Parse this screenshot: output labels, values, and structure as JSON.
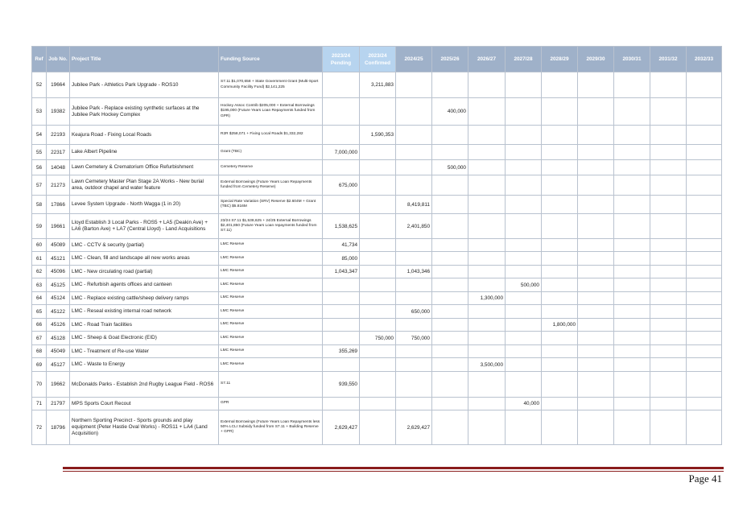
{
  "table": {
    "headers": {
      "ref": "Ref",
      "job_no": "Job No.",
      "project_title": "Project Title",
      "funding_source": "Funding Source",
      "years": [
        "2023/24 Pending",
        "2023/24 Confirmed",
        "2024/25",
        "2025/26",
        "2026/27",
        "2027/28",
        "2028/29",
        "2029/30",
        "2030/31",
        "2031/32",
        "2032/33"
      ]
    },
    "rows": [
      {
        "ref": "52",
        "job": "19664",
        "title": "Jubilee Park - Athletics Park Upgrade - ROS10",
        "funding": "S7.11 $1,070,658 + State Government Grant (Multi-Sport Community Facility Fund) $2,141,225",
        "values": [
          "",
          "3,211,883",
          "",
          "",
          "",
          "",
          "",
          "",
          "",
          "",
          ""
        ]
      },
      {
        "ref": "53",
        "job": "19382",
        "title": "Jubilee Park - Replace existing synthetic surfaces at the Jubilee Park Hockey Complex",
        "funding": "Hockey Assoc Contrib $205,000 + External Borrowings $195,000 (Future Years Loan Repayments funded from GPR)",
        "values": [
          "",
          "",
          "",
          "400,000",
          "",
          "",
          "",
          "",
          "",
          "",
          ""
        ]
      },
      {
        "ref": "54",
        "job": "22193",
        "title": "Keajura Road - Fixing Local Roads",
        "funding": "R2R $258,071 + Fixing Local Roads $1,332,282",
        "values": [
          "",
          "1,590,353",
          "",
          "",
          "",
          "",
          "",
          "",
          "",
          "",
          ""
        ]
      },
      {
        "ref": "55",
        "job": "22317",
        "title": "Lake Albert Pipeline",
        "funding": "Grant (TBC)",
        "values": [
          "7,000,000",
          "",
          "",
          "",
          "",
          "",
          "",
          "",
          "",
          "",
          ""
        ]
      },
      {
        "ref": "56",
        "job": "14048",
        "title": "Lawn Cemetery & Crematorium Office Refurbishment",
        "funding": "Cemetery Reserve",
        "values": [
          "",
          "",
          "",
          "500,000",
          "",
          "",
          "",
          "",
          "",
          "",
          ""
        ]
      },
      {
        "ref": "57",
        "job": "21273",
        "title": "Lawn Cemetery Master Plan Stage 2A Works - New burial area, outdoor chapel and water feature",
        "funding": "External Borrowings (Future Years Loan Repayments funded from Cemetery Reserve)",
        "values": [
          "675,000",
          "",
          "",
          "",
          "",
          "",
          "",
          "",
          "",
          "",
          ""
        ]
      },
      {
        "ref": "58",
        "job": "17866",
        "title": "Levee System Upgrade - North Wagga (1 in 20)",
        "funding": "Special Rate Variation (SRV) Reserve $2.604M + Grant (TBC) $5.816M",
        "values": [
          "",
          "",
          "8,419,811",
          "",
          "",
          "",
          "",
          "",
          "",
          "",
          ""
        ]
      },
      {
        "ref": "59",
        "job": "19661",
        "title": "Lloyd Establish 3 Local Parks - ROS5 + LA5 (Deakin Ave) + LA6 (Barton Ave) + LA7 (Central Lloyd) - Land Acquisitions",
        "funding": "23/24 S7.11 $1,538,625 + 24/25 External Borrowings $2,401,850 (Future Years Loan repayments funded from S7.11)",
        "values": [
          "1,538,625",
          "",
          "2,401,850",
          "",
          "",
          "",
          "",
          "",
          "",
          "",
          ""
        ]
      },
      {
        "ref": "60",
        "job": "45089",
        "title": "LMC - CCTV & security (partial)",
        "funding": "LMC Reserve",
        "values": [
          "41,734",
          "",
          "",
          "",
          "",
          "",
          "",
          "",
          "",
          "",
          ""
        ]
      },
      {
        "ref": "61",
        "job": "45121",
        "title": "LMC - Clean, fill and landscape all new works areas",
        "funding": "LMC Reserve",
        "values": [
          "85,000",
          "",
          "",
          "",
          "",
          "",
          "",
          "",
          "",
          "",
          ""
        ]
      },
      {
        "ref": "62",
        "job": "45096",
        "title": "LMC - New circulating road (partial)",
        "funding": "LMC Reserve",
        "values": [
          "1,043,347",
          "",
          "1,043,346",
          "",
          "",
          "",
          "",
          "",
          "",
          "",
          ""
        ]
      },
      {
        "ref": "63",
        "job": "45125",
        "title": "LMC - Refurbish agents offices and canteen",
        "funding": "LMC Reserve",
        "values": [
          "",
          "",
          "",
          "",
          "",
          "500,000",
          "",
          "",
          "",
          "",
          ""
        ]
      },
      {
        "ref": "64",
        "job": "45124",
        "title": "LMC - Replace existing cattle/sheep delivery ramps",
        "funding": "LMC Reserve",
        "values": [
          "",
          "",
          "",
          "",
          "1,300,000",
          "",
          "",
          "",
          "",
          "",
          ""
        ]
      },
      {
        "ref": "65",
        "job": "45122",
        "title": "LMC - Reseal existing internal road network",
        "funding": "LMC Reserve",
        "values": [
          "",
          "",
          "650,000",
          "",
          "",
          "",
          "",
          "",
          "",
          "",
          ""
        ]
      },
      {
        "ref": "66",
        "job": "45126",
        "title": "LMC - Road Train facilities",
        "funding": "LMC Reserve",
        "values": [
          "",
          "",
          "",
          "",
          "",
          "",
          "1,800,000",
          "",
          "",
          "",
          ""
        ]
      },
      {
        "ref": "67",
        "job": "45128",
        "title": "LMC - Sheep & Goat Electronic (EID)",
        "funding": "LMC Reserve",
        "values": [
          "",
          "750,000",
          "750,000",
          "",
          "",
          "",
          "",
          "",
          "",
          "",
          ""
        ]
      },
      {
        "ref": "68",
        "job": "45049",
        "title": "LMC - Treatment of Re-use Water",
        "funding": "LMC Reserve",
        "values": [
          "355,269",
          "",
          "",
          "",
          "",
          "",
          "",
          "",
          "",
          "",
          ""
        ]
      },
      {
        "ref": "69",
        "job": "45127",
        "title": "LMC - Waste to Energy",
        "funding": "LMC Reserve",
        "values": [
          "",
          "",
          "",
          "",
          "3,500,000",
          "",
          "",
          "",
          "",
          "",
          ""
        ]
      },
      {
        "ref": "70",
        "job": "19662",
        "title": "McDonalds Parks - Establish 2nd Rugby League Field - ROS6",
        "funding": "S7.11",
        "values": [
          "939,550",
          "",
          "",
          "",
          "",
          "",
          "",
          "",
          "",
          "",
          ""
        ]
      },
      {
        "ref": "71",
        "job": "21797",
        "title": "MPS Sports Court Recout",
        "funding": "GPR",
        "values": [
          "",
          "",
          "",
          "",
          "",
          "40,000",
          "",
          "",
          "",
          "",
          ""
        ]
      },
      {
        "ref": "72",
        "job": "18796",
        "title": "Northern Sporting Precinct - Sports grounds and play equipment (Peter Hastie Oval Works) - ROS11 + LA4 (Land Acquisition)",
        "funding": "External Borrowings (Future Years Loan Repayments less 50% LCLI Subsidy funded from S7.11 + Building Reserve + GPR)",
        "values": [
          "2,629,427",
          "",
          "2,629,427",
          "",
          "",
          "",
          "",
          "",
          "",
          "",
          ""
        ]
      }
    ]
  },
  "footer": {
    "page_label": "Page 41",
    "rule_color": "#8a1c1c"
  },
  "colors": {
    "header_bg": "#9fb1c9",
    "header_highlight_bg": "#b7d4ef",
    "grid_line": "#b9c2cf"
  }
}
